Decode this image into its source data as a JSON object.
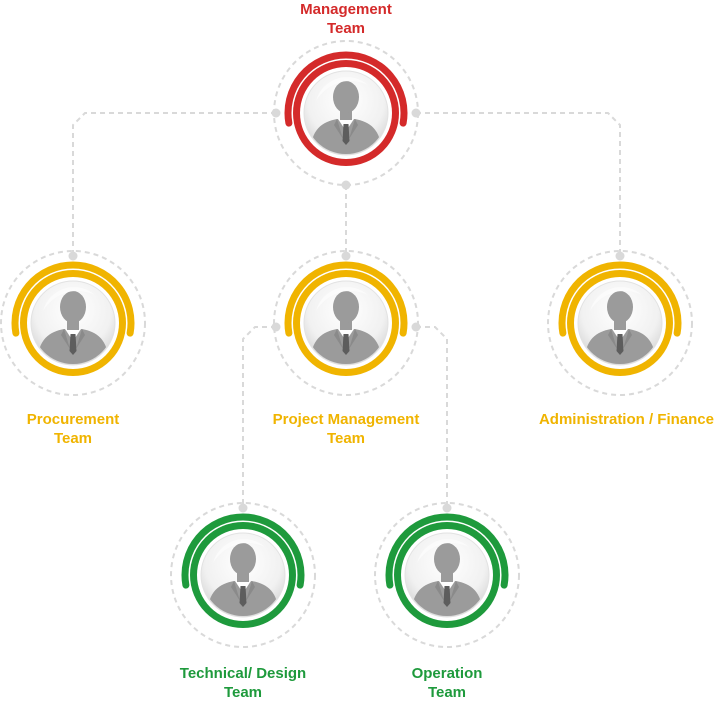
{
  "colors": {
    "red": "#d42a2a",
    "yellow": "#f0b400",
    "green": "#1e9a3c",
    "connector": "#d9d9d9",
    "silhouette": "#9b9b9b"
  },
  "nodes": [
    {
      "id": "management",
      "lines": [
        "Management",
        "Team"
      ],
      "color": "red",
      "icon": "person-icon"
    },
    {
      "id": "procurement",
      "lines": [
        "Procurement",
        "Team"
      ],
      "color": "yellow",
      "icon": "person-icon"
    },
    {
      "id": "project-management",
      "lines": [
        "Project Management",
        "Team"
      ],
      "color": "yellow",
      "icon": "person-icon"
    },
    {
      "id": "admin-finance",
      "lines": [
        "Administration / Finance"
      ],
      "color": "yellow",
      "icon": "person-icon"
    },
    {
      "id": "technical-design",
      "lines": [
        "Technical/ Design",
        "Team"
      ],
      "color": "green",
      "icon": "person-icon"
    },
    {
      "id": "operation",
      "lines": [
        "Operation",
        "Team"
      ],
      "color": "green",
      "icon": "person-icon"
    }
  ],
  "edges": [
    {
      "from": "management",
      "to": "procurement"
    },
    {
      "from": "management",
      "to": "project-management"
    },
    {
      "from": "management",
      "to": "admin-finance"
    },
    {
      "from": "project-management",
      "to": "technical-design"
    },
    {
      "from": "project-management",
      "to": "operation"
    }
  ]
}
